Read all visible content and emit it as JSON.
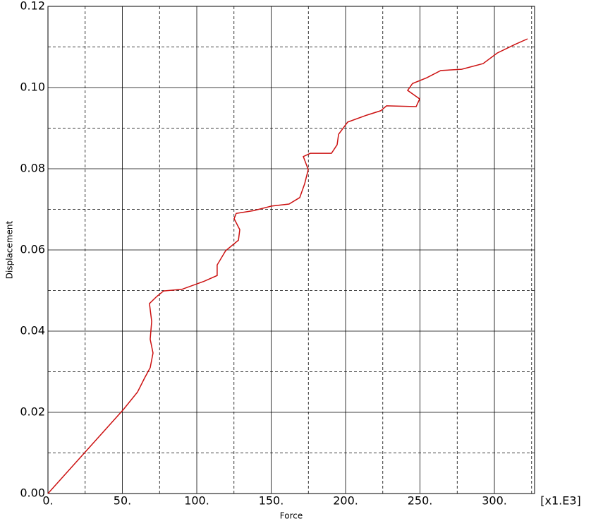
{
  "chart_data": {
    "type": "line",
    "x_label": "Force",
    "y_label": "Displacement",
    "x_multiplier": "[x1.E3]",
    "xlim": [
      0,
      327
    ],
    "ylim": [
      0,
      0.12
    ],
    "xticks": [
      {
        "value": 0,
        "label": "0."
      },
      {
        "value": 50,
        "label": "50."
      },
      {
        "value": 100,
        "label": "100."
      },
      {
        "value": 150,
        "label": "150."
      },
      {
        "value": 200,
        "label": "200."
      },
      {
        "value": 250,
        "label": "250."
      },
      {
        "value": 300,
        "label": "300."
      }
    ],
    "yticks": [
      {
        "value": 0,
        "label": "0.00"
      },
      {
        "value": 0.02,
        "label": "0.02"
      },
      {
        "value": 0.04,
        "label": "0.04"
      },
      {
        "value": 0.06,
        "label": "0.06"
      },
      {
        "value": 0.08,
        "label": "0.08"
      },
      {
        "value": 0.1,
        "label": "0.10"
      },
      {
        "value": 0.12,
        "label": "0.12"
      }
    ],
    "xminorticks": [
      25,
      75,
      125,
      175,
      225,
      275,
      325
    ],
    "yminorticks": [
      0.01,
      0.03,
      0.05,
      0.07,
      0.09,
      0.11
    ],
    "grid": true,
    "series": [
      {
        "color": "#cc1111",
        "x": [
          0,
          50.7,
          60.2,
          65,
          68.7,
          70.6,
          68.7,
          69.7,
          68.2,
          73,
          77.7,
          90,
          105,
          113.7,
          113.7,
          119.4,
          128,
          128.9,
          125.1,
          126.5,
          138.4,
          150.2,
          162,
          169.2,
          172.5,
          174.9,
          171.6,
          176.3,
          190.5,
          194.3,
          195.3,
          201.4,
          214.2,
          223.7,
          227.5,
          247.4,
          249.8,
          241.7,
          245,
          254.5,
          264,
          278,
          292.4,
          301.9,
          313.7,
          322.3
        ],
        "values": [
          0,
          0.0207,
          0.025,
          0.0285,
          0.031,
          0.0346,
          0.038,
          0.0424,
          0.0468,
          0.0485,
          0.0499,
          0.0503,
          0.0523,
          0.0537,
          0.0563,
          0.0598,
          0.0624,
          0.065,
          0.0677,
          0.069,
          0.0697,
          0.0708,
          0.0713,
          0.0729,
          0.0763,
          0.0798,
          0.083,
          0.0838,
          0.0838,
          0.0859,
          0.0885,
          0.0915,
          0.0932,
          0.0943,
          0.0955,
          0.0953,
          0.0972,
          0.0993,
          0.101,
          0.1024,
          0.1042,
          0.1045,
          0.1059,
          0.1085,
          0.1106,
          0.112
        ]
      }
    ]
  }
}
